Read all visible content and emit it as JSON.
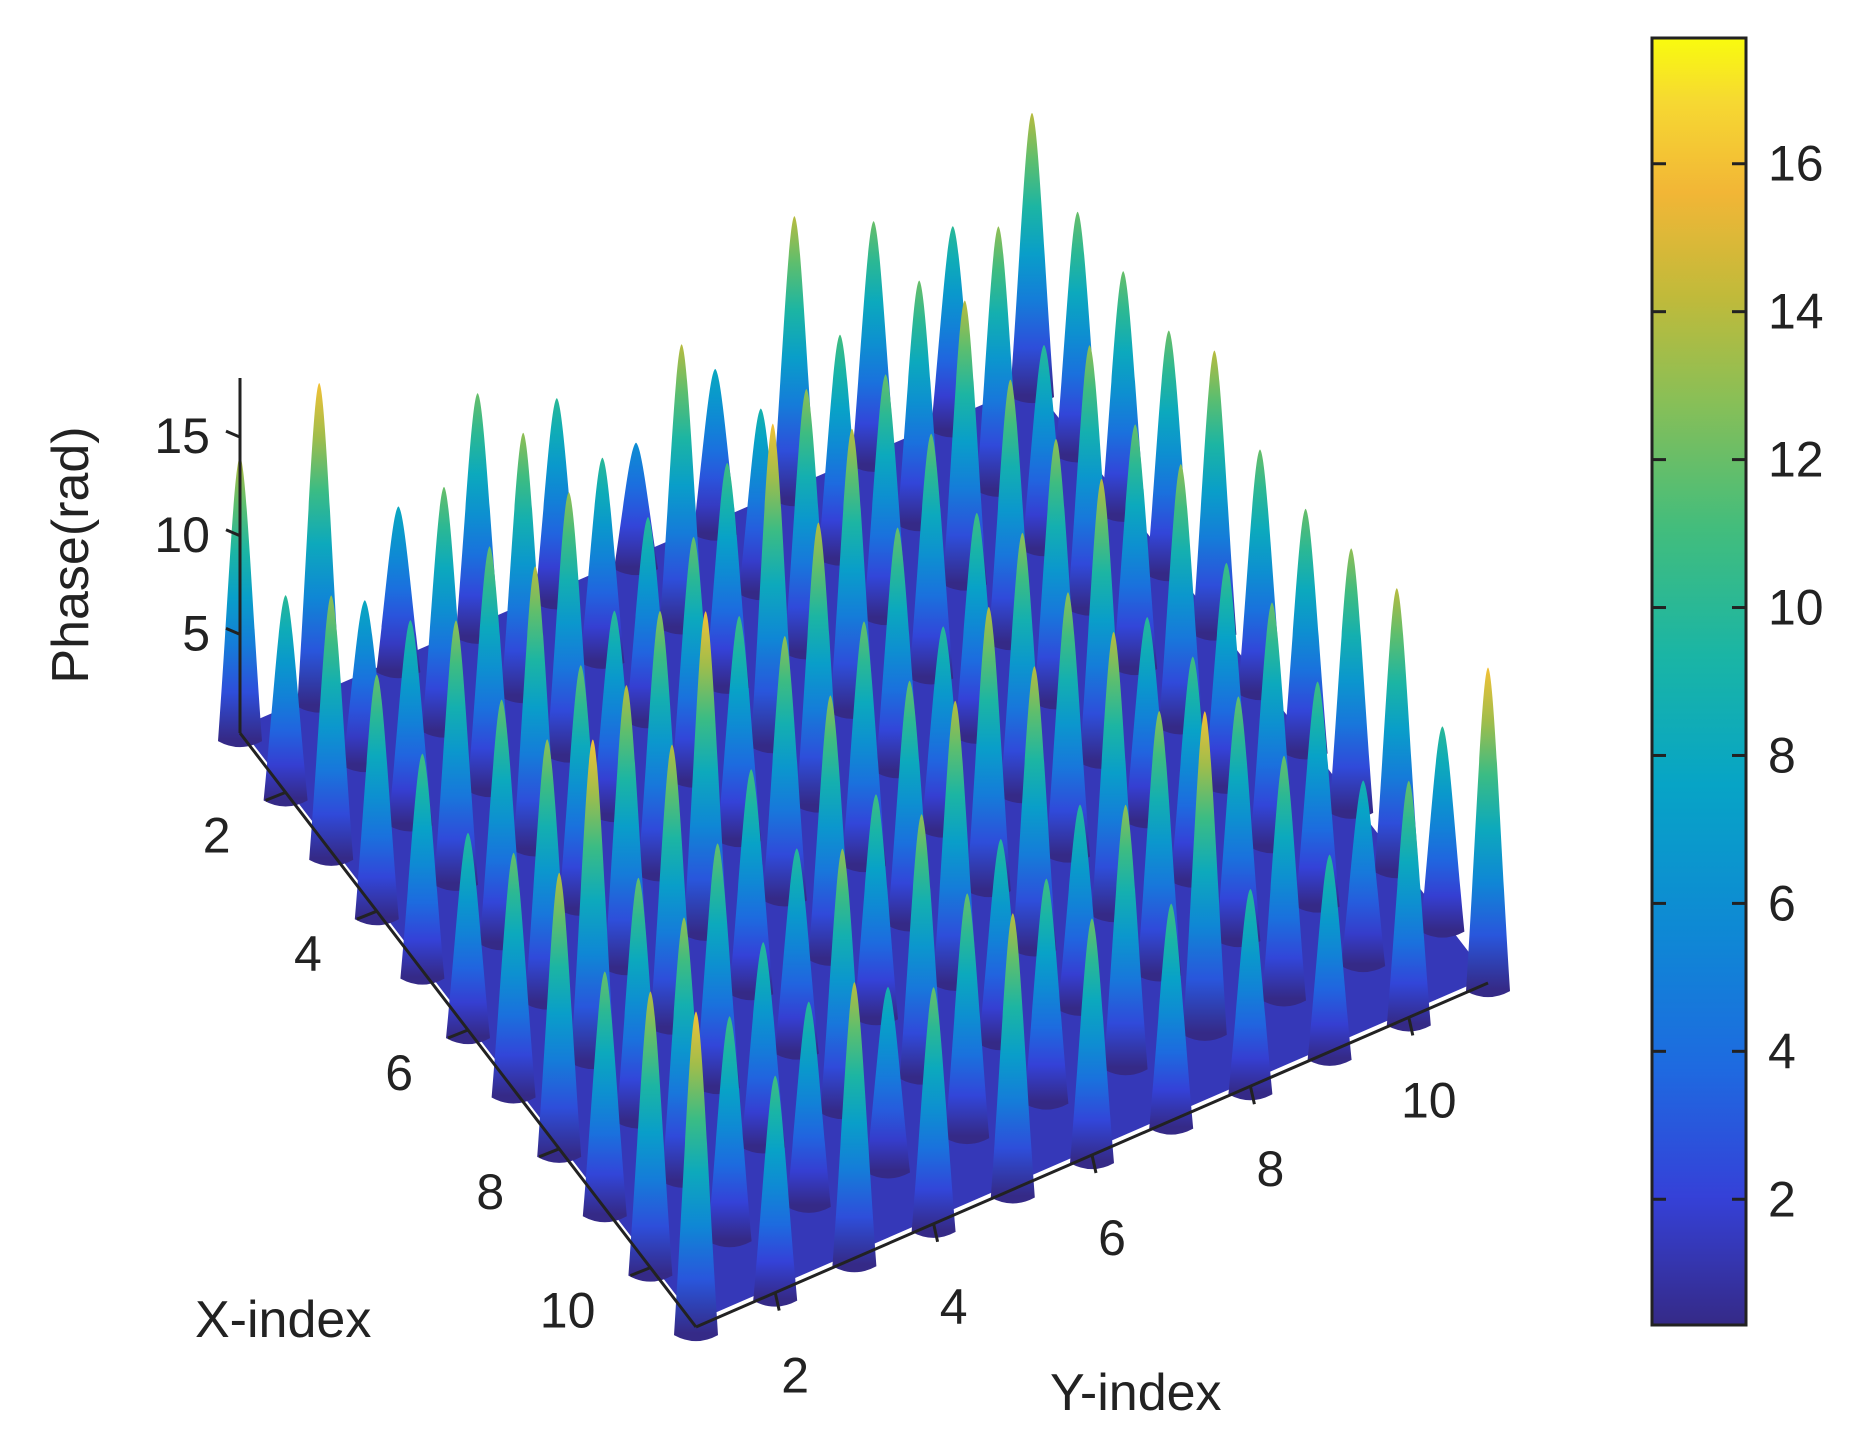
{
  "chart_data": {
    "type": "surface3d",
    "title": "",
    "xlabel": "X-index",
    "ylabel": "Y-index",
    "zlabel": "Phase(rad)",
    "x_ticks": [
      "2",
      "4",
      "6",
      "8",
      "10"
    ],
    "y_ticks": [
      "2",
      "4",
      "6",
      "8",
      "10"
    ],
    "z_ticks": [
      "5",
      "10",
      "15"
    ],
    "xlim": [
      1,
      11
    ],
    "ylim": [
      1,
      11
    ],
    "zlim": [
      0,
      18
    ],
    "colorbar": {
      "ticks": [
        "2",
        "4",
        "6",
        "8",
        "10",
        "12",
        "14",
        "16"
      ],
      "range": [
        0.3,
        17.7
      ],
      "colormap": "parula",
      "placement": "right"
    },
    "grid": false,
    "surface": {
      "x_index": [
        1,
        2,
        3,
        4,
        5,
        6,
        7,
        8,
        9,
        10,
        11
      ],
      "y_index": [
        1,
        2,
        3,
        4,
        5,
        6,
        7,
        8,
        9,
        10,
        11
      ],
      "peak_phase": [
        [
          14,
          16,
          8,
          12,
          10,
          6,
          8,
          14,
          12,
          10,
          14
        ],
        [
          10,
          8,
          12,
          13,
          10,
          14,
          9,
          11,
          12,
          13,
          12
        ],
        [
          13,
          10,
          12,
          13,
          10,
          11,
          13,
          12,
          14,
          10,
          12
        ],
        [
          12,
          13,
          14,
          10,
          12,
          16,
          14,
          12,
          13,
          13,
          12
        ],
        [
          11,
          12,
          12,
          13,
          11,
          14,
          12,
          11,
          13,
          12,
          14
        ],
        [
          10,
          13,
          14,
          16,
          13,
          12,
          10,
          13,
          14,
          13,
          12
        ],
        [
          12,
          16,
          14,
          11,
          13,
          12,
          14,
          13,
          10,
          11,
          12
        ],
        [
          14,
          12,
          12,
          10,
          11,
          14,
          14,
          14,
          11,
          12,
          13
        ],
        [
          12,
          13,
          10,
          13,
          13,
          10,
          10,
          13,
          12,
          11,
          14
        ],
        [
          14,
          11,
          10,
          9,
          12,
          11,
          13,
          16,
          12,
          9,
          10
        ],
        [
          16,
          11,
          14,
          12,
          14,
          12,
          11,
          10,
          10,
          12,
          16
        ]
      ],
      "valley_phase": 0.3
    }
  }
}
